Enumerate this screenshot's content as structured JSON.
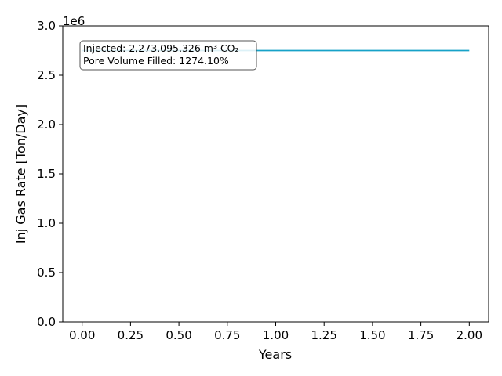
{
  "chart_data": {
    "type": "line",
    "title": "",
    "xlabel": "Years",
    "ylabel": "Inj Gas Rate [Ton/Day]",
    "y_offset_label": "1e6",
    "xlim": [
      -0.1,
      2.1
    ],
    "ylim": [
      0,
      3000000.0
    ],
    "x_ticks": [
      0.0,
      0.25,
      0.5,
      0.75,
      1.0,
      1.25,
      1.5,
      1.75,
      2.0
    ],
    "x_tick_labels": [
      "0.00",
      "0.25",
      "0.50",
      "0.75",
      "1.00",
      "1.25",
      "1.50",
      "1.75",
      "2.00"
    ],
    "y_ticks": [
      0,
      500000,
      1000000,
      1500000,
      2000000,
      2500000,
      3000000
    ],
    "y_tick_labels": [
      "0.0",
      "0.5",
      "1.0",
      "1.5",
      "2.0",
      "2.5",
      "3.0"
    ],
    "grid": false,
    "series": [
      {
        "color": "#17a2c8",
        "x": [
          0.0,
          2.0
        ],
        "y": [
          2750000,
          2750000
        ]
      }
    ],
    "annotation": {
      "placement": "top-left",
      "lines": [
        "Injected: 2,273,095,326 m³ CO₂",
        "Pore Volume Filled: 1274.10%"
      ]
    }
  }
}
